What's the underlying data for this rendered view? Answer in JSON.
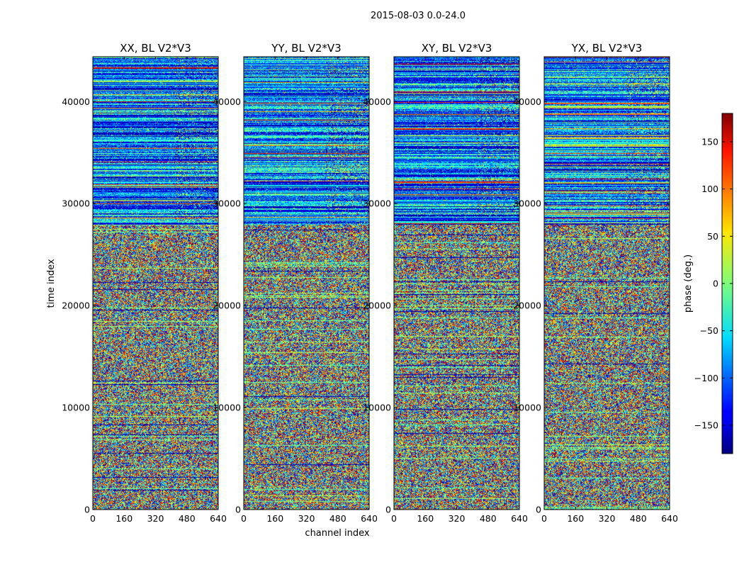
{
  "figure_title": "2015-08-03 0.0-24.0",
  "chart_data": {
    "type": "heatmap",
    "suptitle": "2015-08-03 0.0-24.0",
    "xlabel": "channel index",
    "ylabel": "time index",
    "xlim": [
      0,
      640
    ],
    "ylim": [
      0,
      44400
    ],
    "xticks": [
      0,
      160,
      320,
      480,
      640
    ],
    "yticks": [
      0,
      10000,
      20000,
      30000,
      40000
    ],
    "panels": [
      {
        "title": "XX, BL V2*V3"
      },
      {
        "title": "YY, BL V2*V3"
      },
      {
        "title": "XY, BL V2*V3"
      },
      {
        "title": "YX, BL V2*V3"
      }
    ],
    "colorbar": {
      "label": "phase (deg.)",
      "range": [
        -180,
        180
      ],
      "ticks": [
        -150,
        -100,
        -50,
        0,
        50,
        100,
        150
      ],
      "tick_labels": [
        "−150",
        "−100",
        "−50",
        "0",
        "50",
        "100",
        "150"
      ],
      "colormap": "jet"
    }
  }
}
